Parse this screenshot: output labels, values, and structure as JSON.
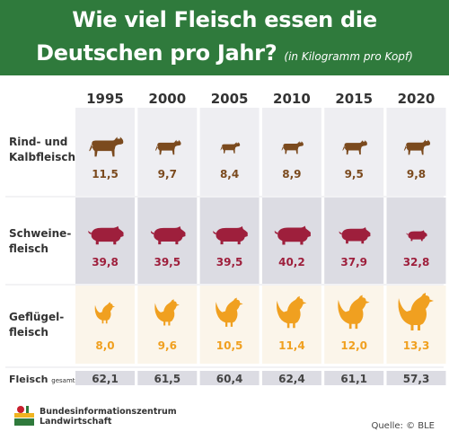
{
  "header": {
    "title_line1": "Wie viel Fleisch essen die",
    "title_line2": "Deutschen pro Jahr?",
    "unit_note": "(in Kilogramm pro Kopf)"
  },
  "rows": {
    "beef_label_1": "Rind- und",
    "beef_label_2": "Kalbfleisch",
    "pork_label_1": "Schweine-",
    "pork_label_2": "fleisch",
    "poultry_label_1": "Geflügel-",
    "poultry_label_2": "fleisch",
    "total_label": "Fleisch",
    "total_suffix": "gesamt"
  },
  "footer": {
    "org_line1": "Bundesinformationszentrum",
    "org_line2": "Landwirtschaft",
    "source": "Quelle: © BLE"
  },
  "colors": {
    "header_bg": "#2f7a3c",
    "beef": "#7b4a1e",
    "pork": "#9e1f3c",
    "poultry": "#f0a020",
    "panel_light": "#eeeef2",
    "panel_dark": "#dcdce3",
    "panel_warm": "#fbf5ea"
  },
  "chart_data": {
    "type": "table",
    "title": "Wie viel Fleisch essen die Deutschen pro Jahr?",
    "unit": "in Kilogramm pro Kopf",
    "categories": [
      "1995",
      "2000",
      "2005",
      "2010",
      "2015",
      "2020"
    ],
    "series": [
      {
        "name": "Rind- und Kalbfleisch",
        "icon": "cow-icon",
        "values": [
          11.5,
          9.7,
          8.4,
          8.9,
          9.5,
          9.8
        ],
        "labels": [
          "11,5",
          "9,7",
          "8,4",
          "8,9",
          "9,5",
          "9,8"
        ]
      },
      {
        "name": "Schweinefleisch",
        "icon": "pig-icon",
        "values": [
          39.8,
          39.5,
          39.5,
          40.2,
          37.9,
          32.8
        ],
        "labels": [
          "39,8",
          "39,5",
          "39,5",
          "40,2",
          "37,9",
          "32,8"
        ]
      },
      {
        "name": "Geflügelfleisch",
        "icon": "chicken-icon",
        "values": [
          8.0,
          9.6,
          10.5,
          11.4,
          12.0,
          13.3
        ],
        "labels": [
          "8,0",
          "9,6",
          "10,5",
          "11,4",
          "12,0",
          "13,3"
        ]
      },
      {
        "name": "Fleisch gesamt",
        "values": [
          62.1,
          61.5,
          60.4,
          62.4,
          61.1,
          57.3
        ],
        "labels": [
          "62,1",
          "61,5",
          "60,4",
          "62,4",
          "61,1",
          "57,3"
        ]
      }
    ]
  }
}
